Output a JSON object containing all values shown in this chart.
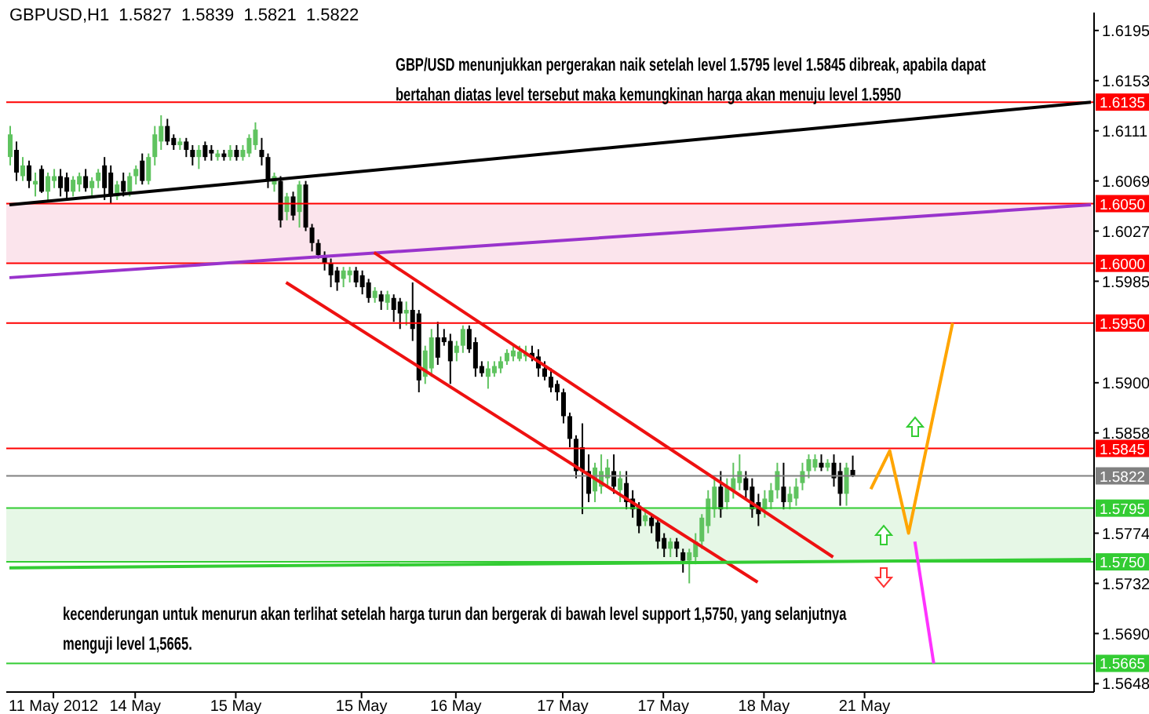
{
  "chart_data": {
    "type": "candlestick",
    "title": "GBPUSD,H1  1.5827  1.5839  1.5821  1.5822",
    "annotations": [
      "GBP/USD menunjukkan pergerakan naik setelah level 1.5795 level 1.5845 dibreak, apabila dapat bertahan diatas level tersebut maka kemungkinan harga akan menuju level 1.5950",
      "kecenderungan untuk menurun akan terlihat setelah harga turun dan bergerak di bawah level support 1,5750, yang selanjutnya menguji level 1,5665."
    ],
    "categories": [
      null,
      null,
      null,
      null,
      null,
      null,
      null,
      "11 May 2012",
      null,
      null,
      null,
      null,
      null,
      null,
      null,
      null,
      null,
      null,
      null,
      null,
      "14 May",
      null,
      null,
      null,
      null,
      null,
      null,
      null,
      null,
      null,
      null,
      null,
      null,
      null,
      null,
      null,
      "15 May",
      null,
      null,
      null,
      null,
      null,
      null,
      null,
      null,
      null,
      null,
      null,
      null,
      null,
      null,
      null,
      null,
      null,
      null,
      null,
      "15 May",
      null,
      null,
      null,
      null,
      null,
      null,
      null,
      null,
      null,
      null,
      null,
      null,
      null,
      null,
      "16 May",
      null,
      null,
      null,
      null,
      null,
      null,
      null,
      null,
      null,
      null,
      null,
      null,
      null,
      null,
      null,
      null,
      "17 May",
      null,
      null,
      null,
      null,
      null,
      null,
      null,
      null,
      null,
      null,
      null,
      null,
      null,
      null,
      null,
      "17 May",
      null,
      null,
      null,
      null,
      null,
      null,
      null,
      null,
      null,
      null,
      null,
      null,
      null,
      null,
      null,
      "18 May",
      null,
      null,
      null,
      null,
      null,
      null,
      null,
      null,
      null,
      null,
      null,
      null,
      null,
      null,
      null,
      "21 May",
      null,
      null,
      null,
      null,
      null,
      null,
      null,
      null,
      null,
      null,
      null,
      null,
      null,
      null,
      null,
      null,
      null,
      null,
      null,
      null,
      null,
      null,
      null,
      null,
      null,
      null,
      null,
      null,
      null,
      null,
      null,
      null,
      null,
      null,
      null,
      null
    ],
    "ohlc": [
      [
        1.6089,
        1.6115,
        1.6082,
        1.6108
      ],
      [
        1.6095,
        1.6102,
        1.6069,
        1.6076
      ],
      [
        1.6073,
        1.6089,
        1.6069,
        1.6082
      ],
      [
        1.6082,
        1.6086,
        1.6063,
        1.6069
      ],
      [
        1.6066,
        1.6076,
        1.6056,
        1.6069
      ],
      [
        1.6079,
        1.6082,
        1.6059,
        1.606
      ],
      [
        1.606,
        1.6076,
        1.6053,
        1.6073
      ],
      [
        1.6069,
        1.6079,
        1.6063,
        1.6073
      ],
      [
        1.6073,
        1.6079,
        1.6056,
        1.6063
      ],
      [
        1.6072,
        1.6076,
        1.6053,
        1.606
      ],
      [
        1.606,
        1.6073,
        1.6056,
        1.607
      ],
      [
        1.6066,
        1.6076,
        1.606,
        1.6073
      ],
      [
        1.6073,
        1.6079,
        1.606,
        1.6063
      ],
      [
        1.6063,
        1.6072,
        1.6056,
        1.6069
      ],
      [
        1.6069,
        1.6079,
        1.6063,
        1.6076
      ],
      [
        1.6082,
        1.6089,
        1.6053,
        1.6063
      ],
      [
        1.6076,
        1.6082,
        1.605,
        1.6056
      ],
      [
        1.6056,
        1.6069,
        1.6053,
        1.6066
      ],
      [
        1.6069,
        1.6076,
        1.6056,
        1.606
      ],
      [
        1.606,
        1.6076,
        1.6056,
        1.6073
      ],
      [
        1.6073,
        1.6082,
        1.6066,
        1.6079
      ],
      [
        1.6086,
        1.6092,
        1.6066,
        1.6069
      ],
      [
        1.6069,
        1.6092,
        1.6066,
        1.6089
      ],
      [
        1.6089,
        1.6115,
        1.6082,
        1.6108
      ],
      [
        1.6102,
        1.6124,
        1.6095,
        1.6115
      ],
      [
        1.6115,
        1.6121,
        1.6099,
        1.6102
      ],
      [
        1.6105,
        1.6108,
        1.6095,
        1.6099
      ],
      [
        1.6099,
        1.6105,
        1.6095,
        1.6102
      ],
      [
        1.6102,
        1.6105,
        1.6089,
        1.6095
      ],
      [
        1.6095,
        1.6099,
        1.6082,
        1.6089
      ],
      [
        1.6089,
        1.6099,
        1.6079,
        1.6095
      ],
      [
        1.6099,
        1.6102,
        1.6086,
        1.6089
      ],
      [
        1.6095,
        1.6099,
        1.6086,
        1.6092
      ],
      [
        1.6089,
        1.6095,
        1.6086,
        1.6092
      ],
      [
        1.6092,
        1.6095,
        1.6086,
        1.6089
      ],
      [
        1.6089,
        1.6099,
        1.6086,
        1.6095
      ],
      [
        1.6095,
        1.6099,
        1.6086,
        1.6089
      ],
      [
        1.6089,
        1.6099,
        1.6086,
        1.6095
      ],
      [
        1.6092,
        1.6108,
        1.6089,
        1.6105
      ],
      [
        1.6099,
        1.6118,
        1.6095,
        1.6112
      ],
      [
        1.6095,
        1.6105,
        1.6082,
        1.6089
      ],
      [
        1.6089,
        1.6092,
        1.6063,
        1.6069
      ],
      [
        1.6066,
        1.6076,
        1.606,
        1.6073
      ],
      [
        1.6069,
        1.6073,
        1.603,
        1.6036
      ],
      [
        1.6043,
        1.6059,
        1.6036,
        1.6056
      ],
      [
        1.6056,
        1.606,
        1.6036,
        1.604
      ],
      [
        1.6043,
        1.6069,
        1.603,
        1.6066
      ],
      [
        1.6066,
        1.6069,
        1.6027,
        1.603
      ],
      [
        1.603,
        1.6033,
        1.601,
        1.6017
      ],
      [
        1.6017,
        1.602,
        1.6004,
        1.6007
      ],
      [
        1.6007,
        1.601,
        1.5994,
        1.6
      ],
      [
        1.6,
        1.6004,
        1.598,
        1.599
      ],
      [
        1.5994,
        1.5997,
        1.5977,
        1.5984
      ],
      [
        1.5987,
        1.5997,
        1.598,
        1.5994
      ],
      [
        1.599,
        1.5997,
        1.5984,
        1.5994
      ],
      [
        1.5994,
        1.5997,
        1.598,
        1.5984
      ],
      [
        1.599,
        1.5994,
        1.5974,
        1.598
      ],
      [
        1.5984,
        1.5987,
        1.5967,
        1.5971
      ],
      [
        1.5971,
        1.598,
        1.5967,
        1.5977
      ],
      [
        1.5974,
        1.5977,
        1.5961,
        1.5968
      ],
      [
        1.5967,
        1.5977,
        1.5961,
        1.5974
      ],
      [
        1.5971,
        1.5974,
        1.5951,
        1.5961
      ],
      [
        1.5968,
        1.5971,
        1.5945,
        1.5958
      ],
      [
        1.5958,
        1.5968,
        1.5948,
        1.5961
      ],
      [
        1.5961,
        1.5984,
        1.5935,
        1.5945
      ],
      [
        1.5958,
        1.5961,
        1.5892,
        1.5902
      ],
      [
        1.5905,
        1.5931,
        1.5899,
        1.5927
      ],
      [
        1.5912,
        1.5945,
        1.5905,
        1.5938
      ],
      [
        1.5938,
        1.5951,
        1.5915,
        1.5921
      ],
      [
        1.5938,
        1.5945,
        1.5931,
        1.5934
      ],
      [
        1.5935,
        1.5941,
        1.5899,
        1.5918
      ],
      [
        1.5925,
        1.5935,
        1.5918,
        1.5931
      ],
      [
        1.5931,
        1.5948,
        1.5925,
        1.5945
      ],
      [
        1.5945,
        1.5948,
        1.5925,
        1.5928
      ],
      [
        1.5934,
        1.5938,
        1.5905,
        1.5912
      ],
      [
        1.5914,
        1.5918,
        1.5905,
        1.5908
      ],
      [
        1.5905,
        1.5918,
        1.5895,
        1.5912
      ],
      [
        1.5908,
        1.5918,
        1.5905,
        1.5914
      ],
      [
        1.5912,
        1.5922,
        1.5908,
        1.5918
      ],
      [
        1.5918,
        1.5928,
        1.5915,
        1.5925
      ],
      [
        1.5922,
        1.5931,
        1.5918,
        1.5927
      ],
      [
        1.592,
        1.5931,
        1.5918,
        1.5926
      ],
      [
        1.5922,
        1.5931,
        1.5918,
        1.5925
      ],
      [
        1.5925,
        1.5931,
        1.5918,
        1.5921
      ],
      [
        1.5922,
        1.5928,
        1.5905,
        1.5912
      ],
      [
        1.5912,
        1.5918,
        1.5902,
        1.5905
      ],
      [
        1.5905,
        1.5912,
        1.5892,
        1.5896
      ],
      [
        1.5899,
        1.5902,
        1.5885,
        1.5892
      ],
      [
        1.5892,
        1.5895,
        1.5866,
        1.5872
      ],
      [
        1.5872,
        1.5875,
        1.5846,
        1.5853
      ],
      [
        1.5853,
        1.5856,
        1.582,
        1.5826
      ],
      [
        1.5846,
        1.5866,
        1.579,
        1.5826
      ],
      [
        1.5826,
        1.584,
        1.58,
        1.5807
      ],
      [
        1.5809,
        1.5833,
        1.58,
        1.5829
      ],
      [
        1.5813,
        1.584,
        1.5807,
        1.5826
      ],
      [
        1.582,
        1.5836,
        1.5813,
        1.5829
      ],
      [
        1.5826,
        1.584,
        1.5807,
        1.5813
      ],
      [
        1.581,
        1.5826,
        1.58,
        1.582
      ],
      [
        1.5816,
        1.5826,
        1.5794,
        1.58
      ],
      [
        1.5803,
        1.581,
        1.5787,
        1.5794
      ],
      [
        1.5797,
        1.58,
        1.5774,
        1.578
      ],
      [
        1.5784,
        1.5794,
        1.578,
        1.5789
      ],
      [
        1.5787,
        1.579,
        1.5774,
        1.578
      ],
      [
        1.5783,
        1.5787,
        1.5761,
        1.5767
      ],
      [
        1.577,
        1.5774,
        1.5754,
        1.5761
      ],
      [
        1.5761,
        1.577,
        1.5754,
        1.5767
      ],
      [
        1.5767,
        1.577,
        1.5754,
        1.5761
      ],
      [
        1.5758,
        1.5761,
        1.5741,
        1.5751
      ],
      [
        1.5751,
        1.5761,
        1.5732,
        1.5758
      ],
      [
        1.5754,
        1.5774,
        1.5748,
        1.5767
      ],
      [
        1.5767,
        1.579,
        1.5761,
        1.5787
      ],
      [
        1.578,
        1.581,
        1.5774,
        1.5803
      ],
      [
        1.5794,
        1.582,
        1.5787,
        1.5813
      ],
      [
        1.5813,
        1.5826,
        1.5787,
        1.5794
      ],
      [
        1.58,
        1.582,
        1.5794,
        1.5813
      ],
      [
        1.581,
        1.5833,
        1.5803,
        1.582
      ],
      [
        1.5816,
        1.584,
        1.581,
        1.5826
      ],
      [
        1.582,
        1.5826,
        1.5803,
        1.581
      ],
      [
        1.5813,
        1.582,
        1.5787,
        1.5794
      ],
      [
        1.58,
        1.5807,
        1.578,
        1.579
      ],
      [
        1.5794,
        1.581,
        1.5787,
        1.5803
      ],
      [
        1.58,
        1.5816,
        1.5794,
        1.581
      ],
      [
        1.581,
        1.5833,
        1.5803,
        1.5826
      ],
      [
        1.5813,
        1.5833,
        1.5794,
        1.58
      ],
      [
        1.58,
        1.5813,
        1.5794,
        1.5807
      ],
      [
        1.5803,
        1.582,
        1.5797,
        1.5813
      ],
      [
        1.5816,
        1.5833,
        1.581,
        1.5826
      ],
      [
        1.5826,
        1.584,
        1.582,
        1.5836
      ],
      [
        1.5829,
        1.584,
        1.5826,
        1.5836
      ],
      [
        1.5833,
        1.584,
        1.5826,
        1.5829
      ],
      [
        1.5829,
        1.5836,
        1.5826,
        1.5833
      ],
      [
        1.5833,
        1.584,
        1.5813,
        1.582
      ],
      [
        1.5826,
        1.5833,
        1.5797,
        1.5807
      ],
      [
        1.5807,
        1.5833,
        1.5797,
        1.5829
      ],
      [
        1.5827,
        1.5839,
        1.5821,
        1.5822
      ],
      null,
      null,
      null,
      null,
      null,
      null,
      null,
      null,
      null,
      null,
      null,
      null,
      null,
      null,
      null,
      null,
      null,
      null,
      null,
      null,
      null,
      null,
      null,
      null,
      null,
      null,
      null,
      null,
      null,
      null,
      null,
      null,
      null,
      null,
      null,
      null,
      null,
      null
    ],
    "series": [
      {
        "type": "line",
        "color": "#000000",
        "values": [
          1.6049,
          null,
          null,
          null,
          null,
          null,
          null,
          null,
          null,
          null,
          null,
          null,
          null,
          null,
          null,
          null,
          null,
          null,
          null,
          null,
          null,
          null,
          null,
          null,
          null,
          null,
          null,
          null,
          null,
          null,
          null,
          null,
          null,
          null,
          null,
          null,
          null,
          null,
          null,
          null,
          null,
          null,
          null,
          null,
          null,
          null,
          null,
          null,
          null,
          null,
          null,
          null,
          null,
          null,
          null,
          null,
          null,
          null,
          null,
          null,
          null,
          null,
          null,
          null,
          null,
          null,
          null,
          null,
          null,
          null,
          null,
          null,
          null,
          null,
          null,
          null,
          null,
          null,
          null,
          null,
          null,
          null,
          null,
          null,
          null,
          null,
          null,
          null,
          null,
          null,
          null,
          null,
          null,
          null,
          null,
          null,
          null,
          null,
          null,
          null,
          null,
          null,
          null,
          null,
          null,
          null,
          null,
          null,
          null,
          null,
          null,
          null,
          null,
          null,
          null,
          null,
          null,
          null,
          null,
          null,
          null,
          null,
          null,
          null,
          null,
          null,
          null,
          null,
          null,
          null,
          null,
          null,
          null,
          null,
          null,
          null,
          null,
          null,
          null,
          null,
          null,
          null,
          null,
          null,
          null,
          null,
          null,
          null,
          null,
          null,
          null,
          null,
          null,
          null,
          null,
          null,
          null,
          null,
          null,
          null,
          null,
          null,
          null,
          null,
          null,
          null,
          null,
          null,
          null,
          null,
          null,
          null,
          1.6135
        ]
      },
      {
        "type": "line",
        "color": "#9933cc",
        "values": [
          1.5988,
          null,
          null,
          null,
          null,
          null,
          null,
          null,
          null,
          null,
          null,
          null,
          null,
          null,
          null,
          null,
          null,
          null,
          null,
          null,
          null,
          null,
          null,
          null,
          null,
          null,
          null,
          null,
          null,
          null,
          null,
          null,
          null,
          null,
          null,
          null,
          null,
          null,
          null,
          null,
          null,
          null,
          null,
          null,
          null,
          null,
          null,
          null,
          null,
          null,
          null,
          null,
          null,
          null,
          null,
          null,
          null,
          null,
          null,
          null,
          null,
          null,
          null,
          null,
          null,
          null,
          null,
          null,
          null,
          null,
          null,
          null,
          null,
          null,
          null,
          null,
          null,
          null,
          null,
          null,
          null,
          null,
          null,
          null,
          null,
          null,
          null,
          null,
          null,
          null,
          null,
          null,
          null,
          null,
          null,
          null,
          null,
          null,
          null,
          null,
          null,
          null,
          null,
          null,
          null,
          null,
          null,
          null,
          null,
          null,
          null,
          null,
          null,
          null,
          null,
          null,
          null,
          null,
          null,
          null,
          null,
          null,
          null,
          null,
          null,
          null,
          null,
          null,
          null,
          null,
          null,
          null,
          null,
          null,
          null,
          null,
          null,
          null,
          null,
          null,
          null,
          null,
          null,
          null,
          null,
          null,
          null,
          null,
          null,
          null,
          null,
          null,
          null,
          null,
          null,
          null,
          null,
          null,
          null,
          null,
          null,
          null,
          null,
          null,
          null,
          null,
          null,
          null,
          null,
          null,
          null,
          null,
          1.6049
        ]
      },
      {
        "type": "line",
        "color": "#ee1111",
        "values": [
          null,
          null,
          null,
          null,
          null,
          null,
          null,
          null,
          null,
          null,
          null,
          null,
          null,
          null,
          null,
          null,
          null,
          null,
          null,
          null,
          null,
          null,
          null,
          null,
          null,
          null,
          null,
          null,
          null,
          null,
          null,
          null,
          null,
          null,
          null,
          null,
          null,
          null,
          null,
          null,
          null,
          null,
          null,
          null,
          null,
          null,
          null,
          null,
          null,
          null,
          null,
          null,
          null,
          null,
          null,
          null,
          null,
          null,
          1.6009,
          null,
          null,
          null,
          null,
          null,
          null,
          null,
          null,
          null,
          null,
          null,
          null,
          null,
          null,
          null,
          null,
          null,
          null,
          null,
          null,
          null,
          null,
          null,
          null,
          null,
          null,
          null,
          null,
          null,
          null,
          null,
          null,
          null,
          null,
          null,
          null,
          null,
          null,
          null,
          null,
          null,
          null,
          null,
          null,
          null,
          null,
          null,
          null,
          null,
          null,
          null,
          null,
          null,
          null,
          null,
          null,
          null,
          null,
          null,
          null,
          null,
          null,
          null,
          null,
          null,
          null,
          null,
          null,
          null,
          null,
          null,
          null,
          1.5754,
          null,
          null,
          null,
          null,
          null,
          null,
          null,
          null,
          null,
          null,
          null,
          null,
          null,
          null,
          null,
          null,
          null,
          null,
          null,
          null,
          null,
          null,
          null,
          null,
          null,
          null,
          null,
          null,
          null,
          null,
          null,
          null,
          null,
          null,
          null,
          null,
          null,
          null,
          null,
          null,
          null
        ]
      },
      {
        "type": "line",
        "color": "#ee1111",
        "values": [
          null,
          null,
          null,
          null,
          null,
          null,
          null,
          null,
          null,
          null,
          null,
          null,
          null,
          null,
          null,
          null,
          null,
          null,
          null,
          null,
          null,
          null,
          null,
          null,
          null,
          null,
          null,
          null,
          null,
          null,
          null,
          null,
          null,
          null,
          null,
          null,
          null,
          null,
          null,
          null,
          null,
          null,
          null,
          null,
          1.5984,
          null,
          null,
          null,
          null,
          null,
          null,
          null,
          null,
          null,
          null,
          null,
          null,
          null,
          null,
          null,
          null,
          null,
          null,
          null,
          null,
          null,
          null,
          null,
          null,
          null,
          null,
          null,
          null,
          null,
          null,
          null,
          null,
          null,
          null,
          null,
          null,
          null,
          null,
          null,
          null,
          null,
          null,
          null,
          null,
          null,
          null,
          null,
          null,
          null,
          null,
          null,
          null,
          null,
          null,
          null,
          null,
          null,
          null,
          null,
          null,
          null,
          null,
          null,
          null,
          null,
          null,
          null,
          null,
          null,
          null,
          null,
          null,
          null,
          null,
          1.5733,
          null,
          null,
          null,
          null,
          null,
          null,
          null,
          null,
          null,
          null,
          null,
          null,
          null,
          null,
          null,
          null,
          null,
          null,
          null,
          null,
          null,
          null,
          null,
          null,
          null,
          null,
          null,
          null,
          null,
          null,
          null,
          null,
          null,
          null,
          null,
          null,
          null,
          null,
          null,
          null,
          null,
          null,
          null,
          null,
          null,
          null,
          null,
          null,
          null,
          null,
          null,
          null,
          null
        ]
      },
      {
        "type": "line",
        "color": "#33cc33",
        "values": [
          1.5745,
          null,
          null,
          null,
          null,
          null,
          null,
          null,
          null,
          null,
          null,
          null,
          null,
          null,
          null,
          null,
          null,
          null,
          null,
          null,
          null,
          null,
          null,
          null,
          null,
          null,
          null,
          null,
          null,
          null,
          null,
          null,
          null,
          null,
          null,
          null,
          null,
          null,
          null,
          null,
          null,
          null,
          null,
          null,
          null,
          null,
          null,
          null,
          null,
          null,
          null,
          null,
          null,
          null,
          null,
          null,
          null,
          null,
          null,
          null,
          null,
          null,
          null,
          null,
          null,
          null,
          null,
          null,
          null,
          null,
          null,
          null,
          null,
          null,
          null,
          null,
          null,
          null,
          null,
          null,
          null,
          null,
          null,
          null,
          null,
          null,
          null,
          null,
          null,
          null,
          null,
          null,
          null,
          null,
          null,
          null,
          null,
          null,
          null,
          null,
          null,
          null,
          null,
          null,
          null,
          null,
          null,
          null,
          null,
          null,
          null,
          null,
          null,
          null,
          null,
          null,
          null,
          null,
          null,
          null,
          null,
          null,
          null,
          null,
          null,
          null,
          null,
          null,
          null,
          null,
          null,
          null,
          null,
          null,
          null,
          null,
          null,
          null,
          null,
          null,
          null,
          null,
          null,
          null,
          null,
          null,
          null,
          null,
          null,
          null,
          null,
          null,
          null,
          null,
          null,
          null,
          null,
          null,
          null,
          null,
          null,
          null,
          null,
          null,
          null,
          null,
          null,
          null,
          null,
          null,
          null,
          null,
          1.5752
        ]
      },
      {
        "type": "line",
        "color": "#ffa500",
        "values": [
          null,
          null,
          null,
          null,
          null,
          null,
          null,
          null,
          null,
          null,
          null,
          null,
          null,
          null,
          null,
          null,
          null,
          null,
          null,
          null,
          null,
          null,
          null,
          null,
          null,
          null,
          null,
          null,
          null,
          null,
          null,
          null,
          null,
          null,
          null,
          null,
          null,
          null,
          null,
          null,
          null,
          null,
          null,
          null,
          null,
          null,
          null,
          null,
          null,
          null,
          null,
          null,
          null,
          null,
          null,
          null,
          null,
          null,
          null,
          null,
          null,
          null,
          null,
          null,
          null,
          null,
          null,
          null,
          null,
          null,
          null,
          null,
          null,
          null,
          null,
          null,
          null,
          null,
          null,
          null,
          null,
          null,
          null,
          null,
          null,
          null,
          null,
          null,
          null,
          null,
          null,
          null,
          null,
          null,
          null,
          null,
          null,
          null,
          null,
          null,
          null,
          null,
          null,
          null,
          null,
          null,
          null,
          null,
          null,
          null,
          null,
          null,
          null,
          null,
          null,
          null,
          null,
          null,
          null,
          null,
          null,
          null,
          null,
          null,
          null,
          null,
          null,
          null,
          null,
          null,
          null,
          null,
          null,
          null,
          null,
          null,
          null,
          1.5811,
          null,
          null,
          1.5843,
          null,
          null,
          1.5774,
          null,
          null,
          null,
          null,
          null,
          null,
          1.595,
          null,
          null,
          null,
          null,
          null,
          null,
          null,
          null,
          null,
          null,
          null,
          null,
          null,
          null,
          null,
          null,
          null,
          null,
          null,
          null,
          null,
          null
        ]
      },
      {
        "type": "line",
        "color": "#ff33ff",
        "values": [
          null,
          null,
          null,
          null,
          null,
          null,
          null,
          null,
          null,
          null,
          null,
          null,
          null,
          null,
          null,
          null,
          null,
          null,
          null,
          null,
          null,
          null,
          null,
          null,
          null,
          null,
          null,
          null,
          null,
          null,
          null,
          null,
          null,
          null,
          null,
          null,
          null,
          null,
          null,
          null,
          null,
          null,
          null,
          null,
          null,
          null,
          null,
          null,
          null,
          null,
          null,
          null,
          null,
          null,
          null,
          null,
          null,
          null,
          null,
          null,
          null,
          null,
          null,
          null,
          null,
          null,
          null,
          null,
          null,
          null,
          null,
          null,
          null,
          null,
          null,
          null,
          null,
          null,
          null,
          null,
          null,
          null,
          null,
          null,
          null,
          null,
          null,
          null,
          null,
          null,
          null,
          null,
          null,
          null,
          null,
          null,
          null,
          null,
          null,
          null,
          null,
          null,
          null,
          null,
          null,
          null,
          null,
          null,
          null,
          null,
          null,
          null,
          null,
          null,
          null,
          null,
          null,
          null,
          null,
          null,
          null,
          null,
          null,
          null,
          null,
          null,
          null,
          null,
          null,
          null,
          null,
          null,
          null,
          null,
          null,
          null,
          null,
          null,
          null,
          null,
          null,
          null,
          null,
          null,
          1.5767,
          null,
          null,
          1.5665,
          null,
          null,
          null,
          null,
          null,
          null,
          null,
          null,
          null,
          null,
          null,
          null,
          null,
          null,
          null,
          null,
          null,
          null,
          null,
          null,
          null,
          null,
          null,
          null,
          null
        ]
      }
    ],
    "ylim": [
      1.5641,
      1.621
    ],
    "yticks": [
      1.5648,
      {
        "value": 1.569,
        "label": "1.5690"
      },
      1.5732,
      1.5774,
      1.5858,
      {
        "value": 1.59,
        "label": "1.5900"
      },
      1.5985,
      1.6027,
      1.6069,
      1.6111,
      1.6153,
      1.6195
    ],
    "ref_lines": [
      {
        "axis": "y",
        "value": 1.6135,
        "label": "1.6135",
        "color": "#ff0000"
      },
      {
        "axis": "y",
        "value": 1.605,
        "label": "1.6050",
        "color": "#ff0000"
      },
      {
        "axis": "y",
        "value": 1.6,
        "label": "1.6000",
        "color": "#ff0000"
      },
      {
        "axis": "y",
        "value": 1.595,
        "label": "1.5950",
        "color": "#ff0000"
      },
      {
        "axis": "y",
        "value": 1.5845,
        "label": "1.5845",
        "color": "#ff0000"
      },
      {
        "axis": "y",
        "value": 1.5822,
        "label": "1.5822",
        "color": "#808080"
      },
      {
        "axis": "y",
        "value": 1.5795,
        "label": "1.5795",
        "color": "#33cc33"
      },
      {
        "axis": "y",
        "value": 1.575,
        "label": "1.5750",
        "color": "#33cc33"
      },
      {
        "axis": "y",
        "value": 1.5665,
        "label": "1.5665",
        "color": "#33cc33"
      }
    ],
    "bands": [
      {
        "axis": "y",
        "from": 1.6,
        "to": 1.605,
        "color": "#fbe4ec"
      },
      {
        "axis": "y",
        "from": 1.575,
        "to": 1.5795,
        "color": "#e6f7e6"
      }
    ]
  }
}
